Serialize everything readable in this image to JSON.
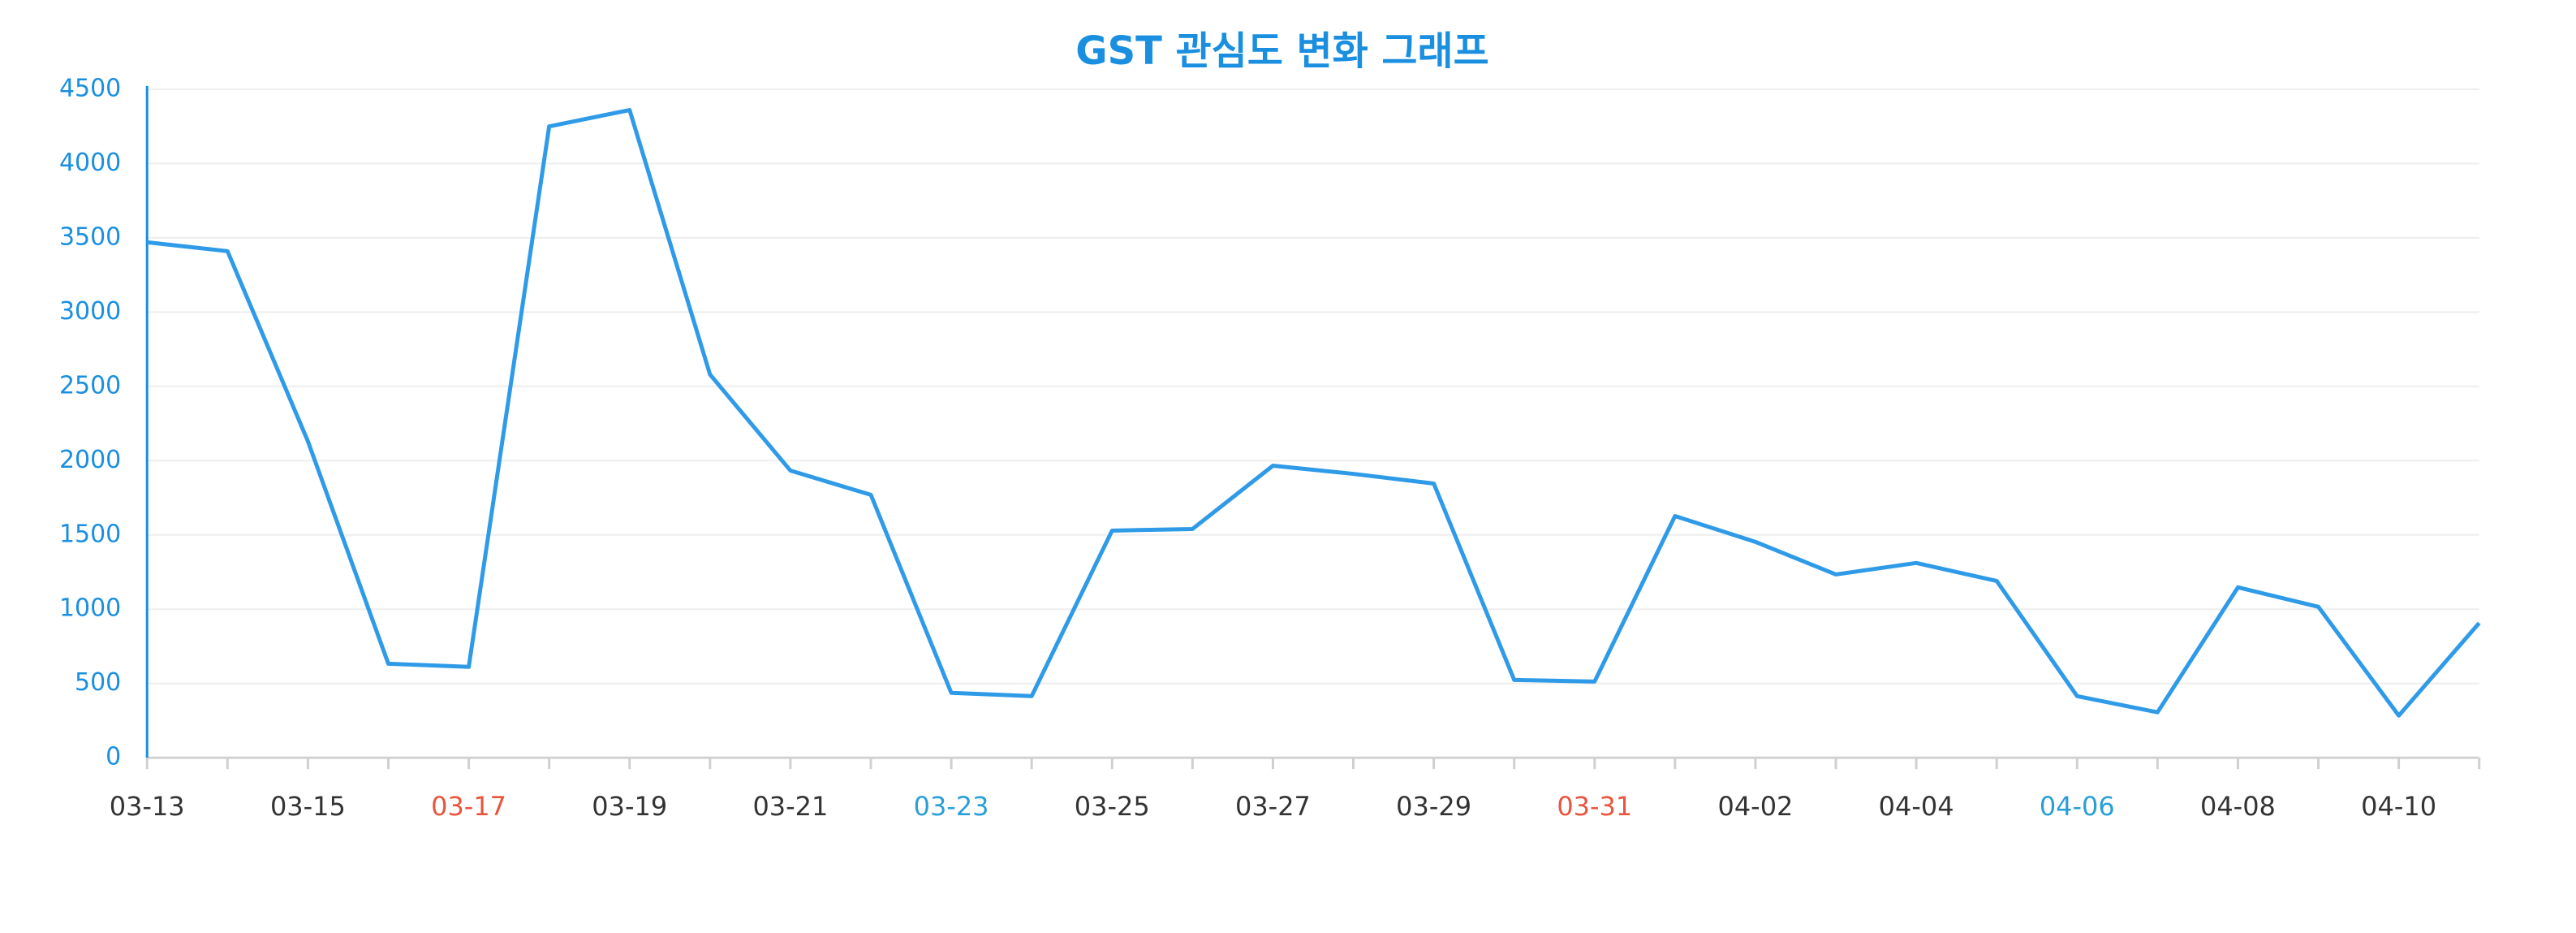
{
  "chart_data": {
    "type": "line",
    "title": "GST 관심도 변화 그래프",
    "categories": [
      "03-13",
      null,
      "03-15",
      null,
      "03-17",
      null,
      "03-19",
      null,
      "03-21",
      null,
      "03-23",
      null,
      "03-25",
      null,
      "03-27",
      null,
      "03-29",
      null,
      "03-31",
      null,
      "04-02",
      null,
      "04-04",
      null,
      "04-06",
      null,
      "04-08",
      null,
      "04-10",
      null
    ],
    "category_colors": [
      "#333333",
      "#333333",
      "#333333",
      "#333333",
      "#e8553e",
      "#333333",
      "#333333",
      "#333333",
      "#333333",
      "#333333",
      "#2a9fd6",
      "#333333",
      "#333333",
      "#333333",
      "#333333",
      "#333333",
      "#333333",
      "#333333",
      "#e8553e",
      "#333333",
      "#333333",
      "#333333",
      "#333333",
      "#333333",
      "#2a9fd6",
      "#333333",
      "#333333",
      "#333333",
      "#333333",
      "#333333"
    ],
    "series": [
      {
        "name": "GST",
        "color": "#2f9be8",
        "values": [
          3470,
          3410,
          2130,
          633,
          612,
          4250,
          4360,
          2580,
          1933,
          1770,
          437,
          415,
          1529,
          1540,
          1966,
          1911,
          1846,
          524,
          513,
          1627,
          1453,
          1234,
          1311,
          1190,
          415,
          306,
          1147,
          1016,
          284,
          907
        ]
      }
    ],
    "ylim": [
      0,
      4500
    ],
    "yticks": [
      0,
      500,
      1000,
      1500,
      2000,
      2500,
      3000,
      3500,
      4000,
      4500
    ],
    "grid": true,
    "axis_color": "#1a8fe0",
    "title_color": "#1a8fe0"
  }
}
